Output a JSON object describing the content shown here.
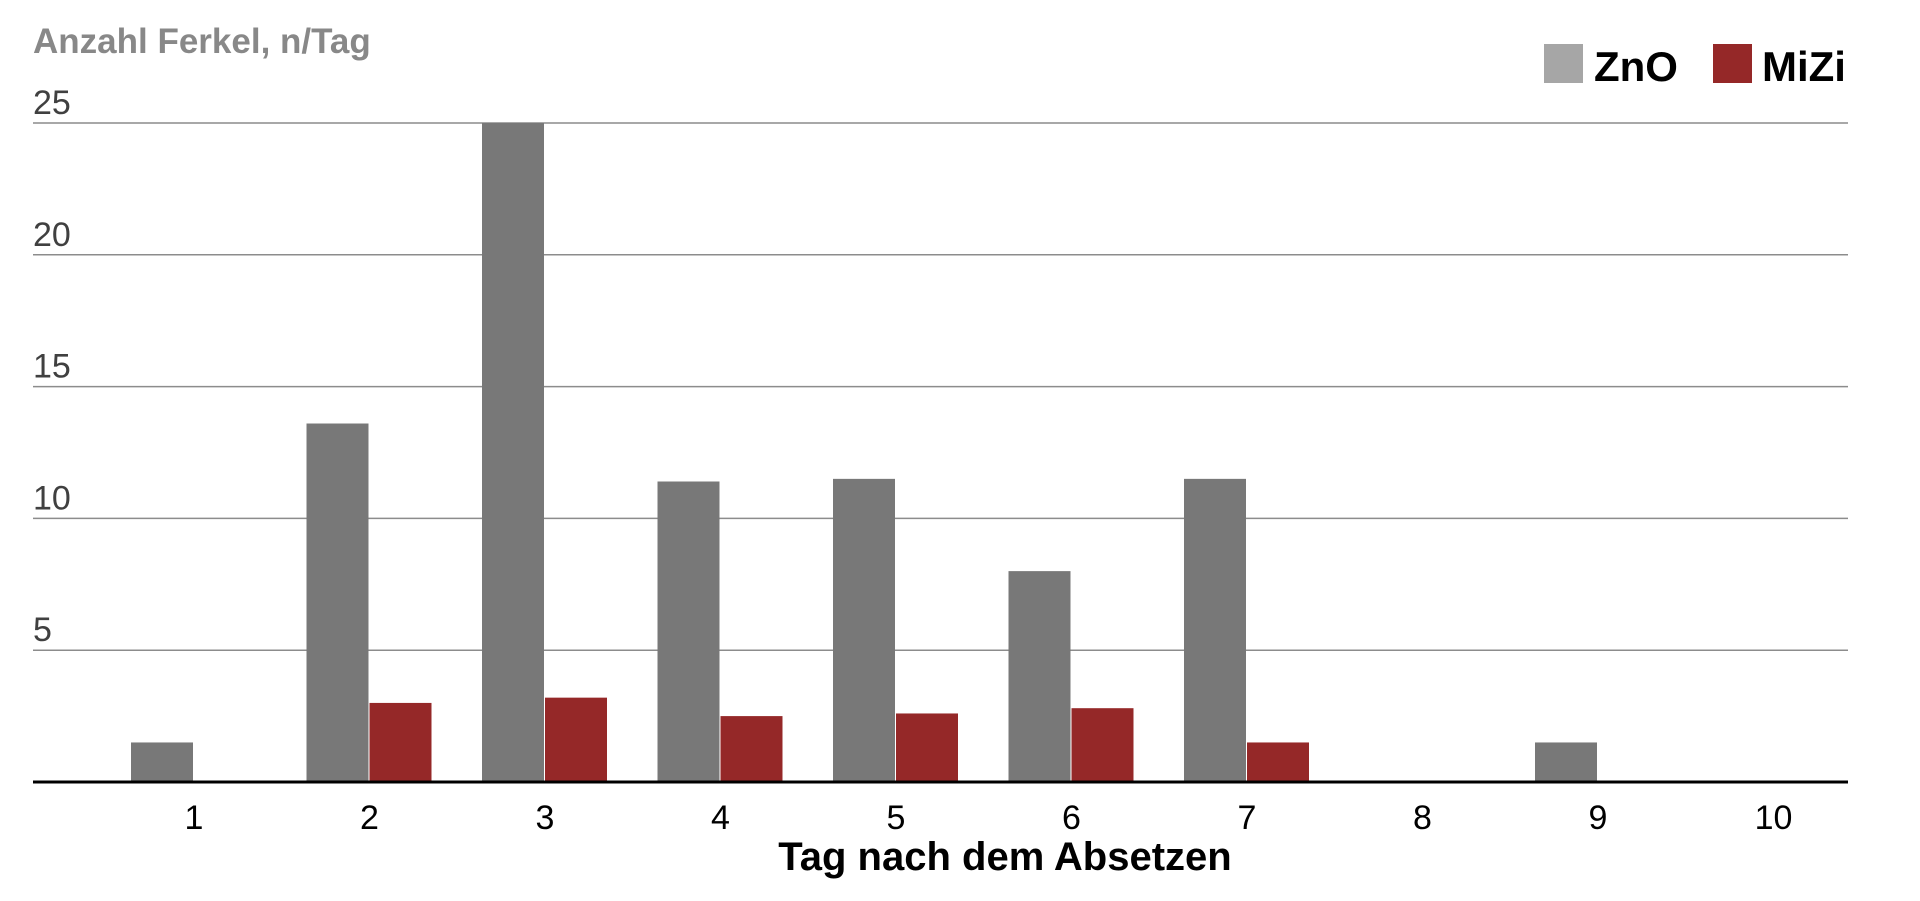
{
  "chart_data": {
    "type": "bar",
    "title": "",
    "ylabel": "Anzahl Ferkel, n/Tag",
    "xlabel": "Tag nach dem Absetzen",
    "categories": [
      "1",
      "2",
      "3",
      "4",
      "5",
      "6",
      "7",
      "8",
      "9",
      "10"
    ],
    "yticks": [
      "5",
      "10",
      "15",
      "20",
      "25"
    ],
    "ylim": [
      0,
      25
    ],
    "grid": true,
    "legend_position": "top-right",
    "series": [
      {
        "name": "ZnO",
        "color": "#787878",
        "legend_color": "#a6a6a6",
        "values": [
          1.5,
          13.6,
          25.0,
          11.4,
          11.5,
          8.0,
          11.5,
          0,
          1.5,
          0
        ]
      },
      {
        "name": "MiZi",
        "color": "#952828",
        "legend_color": "#952828",
        "values": [
          0,
          3.0,
          3.2,
          2.5,
          2.6,
          2.8,
          1.5,
          0,
          0,
          0
        ]
      }
    ]
  }
}
